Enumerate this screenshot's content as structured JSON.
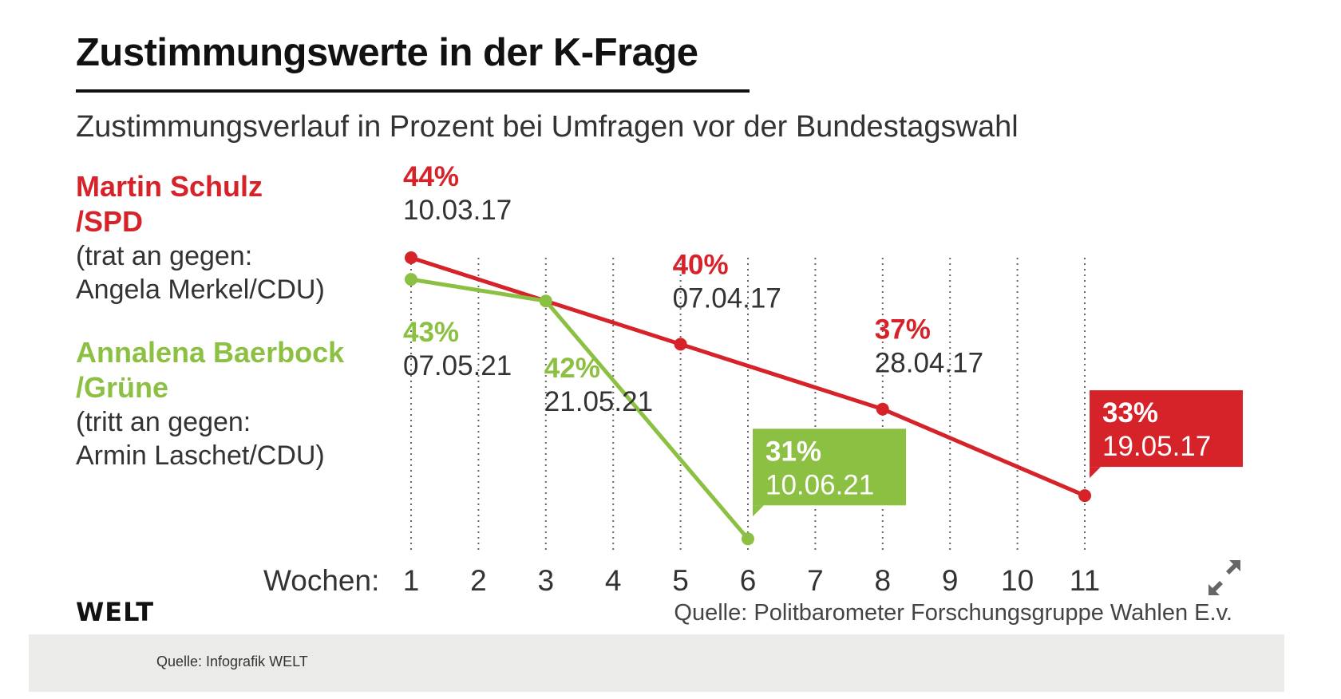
{
  "title": "Zustimmungswerte in der K-Frage",
  "subtitle": "Zustimmungsverlauf in Prozent bei Umfragen vor der Bundestagswahl",
  "legend": {
    "schulz_name_1": "Martin Schulz",
    "schulz_name_2": "/SPD",
    "schulz_note_1": "(trat an gegen:",
    "schulz_note_2": "Angela Merkel/CDU)",
    "baerbock_name_1": "Annalena Baerbock",
    "baerbock_name_2": "/Grüne",
    "baerbock_note_1": "(tritt an gegen:",
    "baerbock_note_2": " Armin Laschet/CDU)"
  },
  "colors": {
    "spd": "#d6232a",
    "gruene": "#8cc043",
    "grid": "#666666"
  },
  "branding": {
    "logo": "WELT"
  },
  "source": "Quelle: Politbarometer Forschungsgruppe Wahlen E.v.",
  "caption": "Quelle: Infografik WELT",
  "expand_icon": "expand-arrows-icon",
  "chart_data": {
    "type": "line",
    "xlabel": "Wochen:",
    "x_ticks": [
      1,
      2,
      3,
      4,
      5,
      6,
      7,
      8,
      9,
      10,
      11
    ],
    "ylabel": "",
    "series": [
      {
        "name": "Martin Schulz /SPD",
        "color": "#d6232a",
        "points": [
          {
            "x": 1,
            "y": 44,
            "value_label": "44%",
            "date": "10.03.17"
          },
          {
            "x": 5,
            "y": 40,
            "value_label": "40%",
            "date": "07.04.17"
          },
          {
            "x": 8,
            "y": 37,
            "value_label": "37%",
            "date": "28.04.17"
          },
          {
            "x": 11,
            "y": 33,
            "value_label": "33%",
            "date": "19.05.17"
          }
        ]
      },
      {
        "name": "Annalena Baerbock /Grüne",
        "color": "#8cc043",
        "points": [
          {
            "x": 1,
            "y": 43,
            "value_label": "43%",
            "date": "07.05.21"
          },
          {
            "x": 3,
            "y": 42,
            "value_label": "42%",
            "date": "21.05.21"
          },
          {
            "x": 6,
            "y": 31,
            "value_label": "31%",
            "date": "10.06.21"
          }
        ]
      }
    ]
  }
}
